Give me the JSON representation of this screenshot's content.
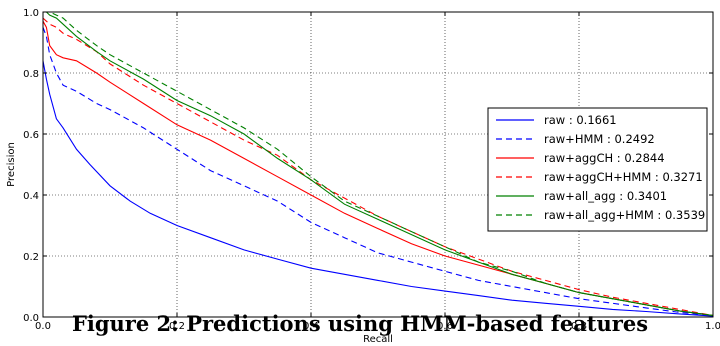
{
  "caption": "Figure 2: Predictions using HMM-based features",
  "chart_data": {
    "type": "line",
    "xlabel": "Recall",
    "ylabel": "Precision",
    "xlim": [
      0,
      1
    ],
    "ylim": [
      0,
      1
    ],
    "xticks": [
      "0.0",
      "0.2",
      "0.4",
      "0.6",
      "0.8",
      "1.0"
    ],
    "yticks": [
      "0.0",
      "0.2",
      "0.4",
      "0.6",
      "0.8",
      "1.0"
    ],
    "grid": true,
    "legend_position": "right",
    "series": [
      {
        "name": "raw : 0.1661",
        "color": "#0000ff",
        "dash": "solid",
        "x": [
          0,
          0.005,
          0.01,
          0.02,
          0.03,
          0.05,
          0.07,
          0.1,
          0.13,
          0.16,
          0.2,
          0.25,
          0.3,
          0.35,
          0.4,
          0.45,
          0.5,
          0.55,
          0.6,
          0.65,
          0.7,
          0.75,
          0.8,
          0.85,
          0.9,
          0.95,
          1.0
        ],
        "y": [
          0.84,
          0.78,
          0.73,
          0.65,
          0.62,
          0.55,
          0.5,
          0.43,
          0.38,
          0.34,
          0.3,
          0.26,
          0.22,
          0.19,
          0.16,
          0.14,
          0.12,
          0.1,
          0.085,
          0.07,
          0.055,
          0.045,
          0.035,
          0.025,
          0.018,
          0.01,
          0.003
        ]
      },
      {
        "name": "raw+HMM : 0.2492",
        "color": "#0000ff",
        "dash": "dashed",
        "x": [
          0,
          0.005,
          0.01,
          0.02,
          0.03,
          0.05,
          0.08,
          0.1,
          0.15,
          0.2,
          0.25,
          0.3,
          0.35,
          0.4,
          0.45,
          0.5,
          0.55,
          0.6,
          0.65,
          0.7,
          0.75,
          0.8,
          0.85,
          0.9,
          0.95,
          1.0
        ],
        "y": [
          0.95,
          0.92,
          0.86,
          0.8,
          0.76,
          0.74,
          0.7,
          0.68,
          0.62,
          0.55,
          0.48,
          0.43,
          0.38,
          0.31,
          0.26,
          0.21,
          0.18,
          0.15,
          0.12,
          0.1,
          0.08,
          0.06,
          0.045,
          0.03,
          0.015,
          0.005
        ]
      },
      {
        "name": "raw+aggCH : 0.2844",
        "color": "#ff0000",
        "dash": "solid",
        "x": [
          0,
          0.005,
          0.01,
          0.02,
          0.03,
          0.05,
          0.08,
          0.1,
          0.15,
          0.2,
          0.25,
          0.3,
          0.35,
          0.4,
          0.45,
          0.5,
          0.55,
          0.6,
          0.65,
          0.7,
          0.75,
          0.8,
          0.85,
          0.9,
          0.95,
          1.0
        ],
        "y": [
          0.97,
          0.95,
          0.89,
          0.86,
          0.85,
          0.84,
          0.8,
          0.77,
          0.7,
          0.63,
          0.58,
          0.52,
          0.46,
          0.4,
          0.34,
          0.29,
          0.24,
          0.2,
          0.17,
          0.14,
          0.11,
          0.08,
          0.06,
          0.04,
          0.02,
          0.005
        ]
      },
      {
        "name": "raw+aggCH+HMM : 0.3271",
        "color": "#ff0000",
        "dash": "dashed",
        "x": [
          0,
          0.005,
          0.01,
          0.02,
          0.03,
          0.05,
          0.08,
          0.1,
          0.15,
          0.2,
          0.25,
          0.3,
          0.35,
          0.4,
          0.45,
          0.5,
          0.55,
          0.6,
          0.65,
          0.7,
          0.75,
          0.8,
          0.85,
          0.9,
          0.95,
          1.0
        ],
        "y": [
          0.98,
          0.97,
          0.96,
          0.95,
          0.93,
          0.91,
          0.87,
          0.83,
          0.76,
          0.7,
          0.64,
          0.58,
          0.53,
          0.45,
          0.39,
          0.33,
          0.28,
          0.23,
          0.19,
          0.15,
          0.12,
          0.09,
          0.065,
          0.045,
          0.025,
          0.005
        ]
      },
      {
        "name": "raw+all_agg : 0.3401",
        "color": "#008000",
        "dash": "solid",
        "x": [
          0,
          0.005,
          0.01,
          0.02,
          0.03,
          0.05,
          0.08,
          0.1,
          0.15,
          0.2,
          0.25,
          0.3,
          0.35,
          0.4,
          0.45,
          0.5,
          0.55,
          0.6,
          0.65,
          0.7,
          0.75,
          0.8,
          0.85,
          0.9,
          0.95,
          1.0
        ],
        "y": [
          1.0,
          1.0,
          0.99,
          0.98,
          0.96,
          0.92,
          0.87,
          0.84,
          0.78,
          0.71,
          0.66,
          0.6,
          0.52,
          0.45,
          0.37,
          0.32,
          0.27,
          0.22,
          0.18,
          0.14,
          0.11,
          0.08,
          0.06,
          0.04,
          0.02,
          0.005
        ]
      },
      {
        "name": "raw+all_agg+HMM : 0.3539",
        "color": "#008000",
        "dash": "dashed",
        "x": [
          0,
          0.005,
          0.01,
          0.02,
          0.03,
          0.05,
          0.08,
          0.1,
          0.15,
          0.2,
          0.25,
          0.3,
          0.35,
          0.4,
          0.45,
          0.5,
          0.55,
          0.6,
          0.65,
          0.7,
          0.75,
          0.8,
          0.85,
          0.9,
          0.95,
          1.0
        ],
        "y": [
          1.0,
          1.0,
          1.0,
          0.99,
          0.98,
          0.94,
          0.89,
          0.86,
          0.8,
          0.74,
          0.68,
          0.62,
          0.55,
          0.46,
          0.38,
          0.33,
          0.28,
          0.23,
          0.18,
          0.15,
          0.11,
          0.08,
          0.06,
          0.04,
          0.02,
          0.005
        ]
      }
    ]
  }
}
